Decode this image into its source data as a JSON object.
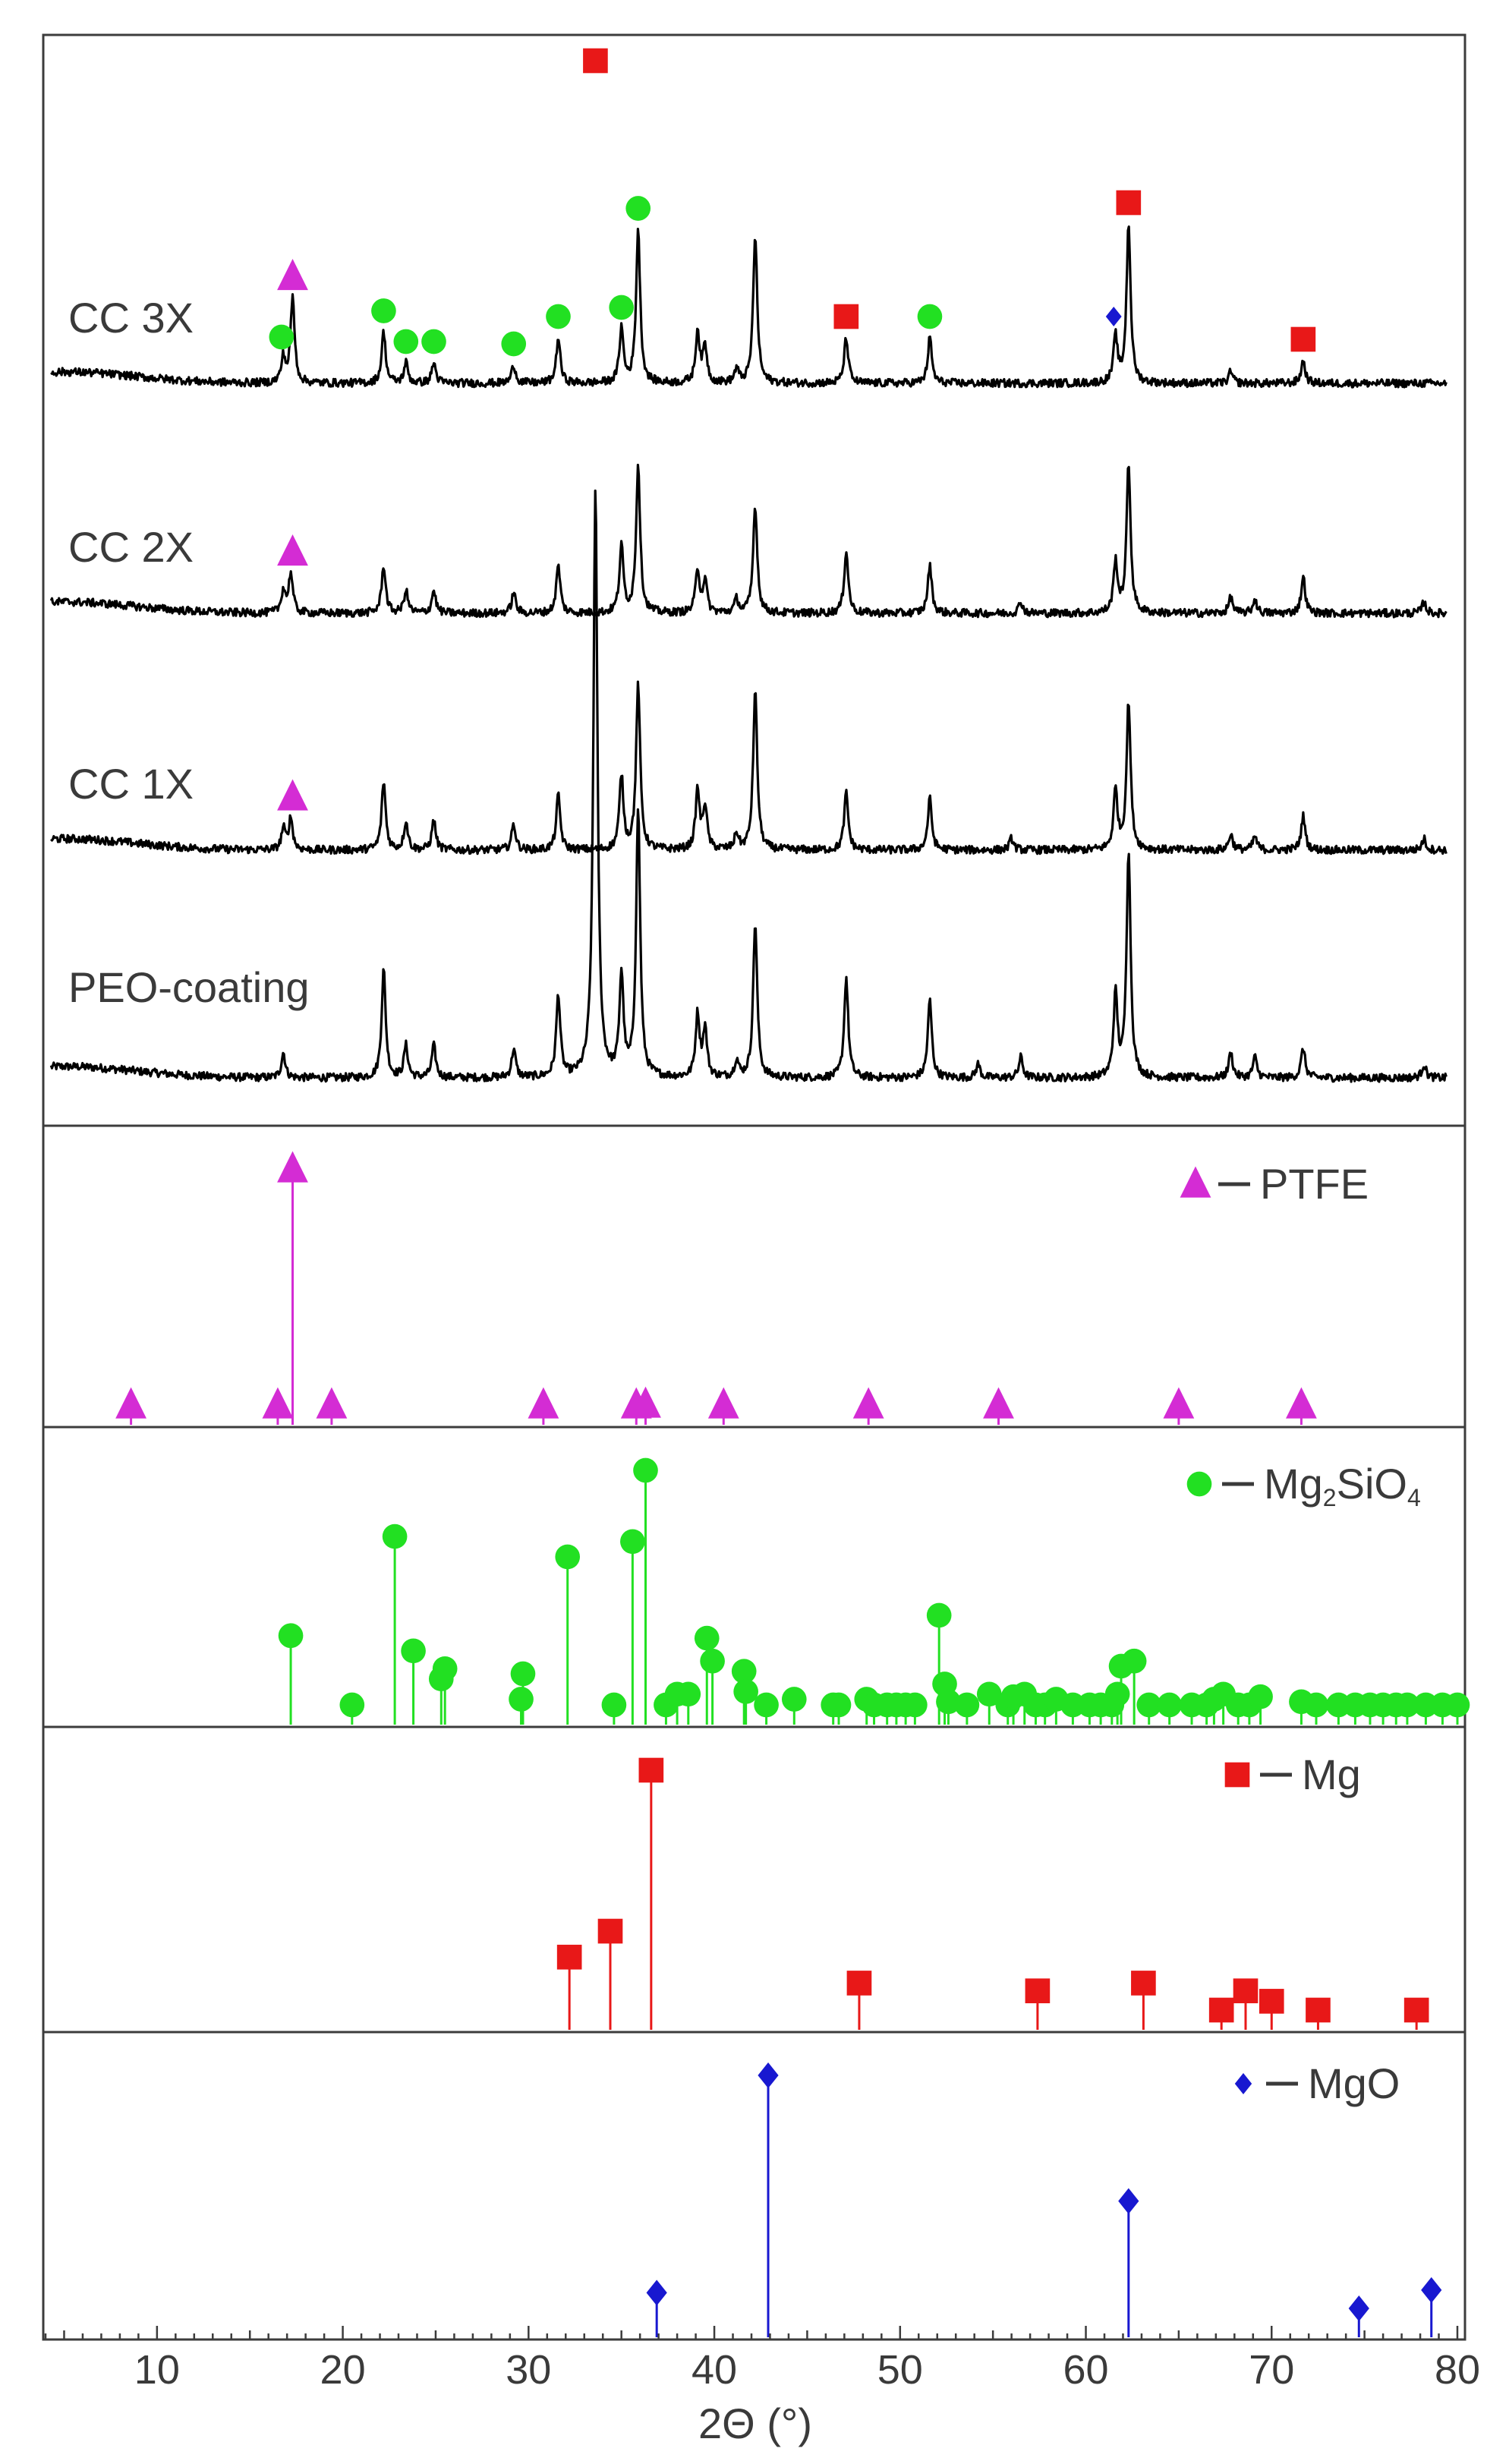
{
  "chart_data": [
    {
      "type": "line",
      "panel": "measured",
      "xlabel": "2Θ (°)",
      "xlim": [
        4,
        80
      ],
      "x_ticks": [
        "10",
        "20",
        "30",
        "40",
        "50",
        "60",
        "70",
        "80"
      ],
      "series": [
        {
          "name": "PEO-coating",
          "peaks": [
            [
              16.8,
              0.22
            ],
            [
              22.2,
              0.95
            ],
            [
              23.4,
              0.28
            ],
            [
              24.9,
              0.28
            ],
            [
              29.2,
              0.25
            ],
            [
              31.6,
              0.72
            ],
            [
              33.6,
              5.2
            ],
            [
              35.0,
              0.88
            ],
            [
              35.9,
              2.35
            ],
            [
              39.1,
              0.55
            ],
            [
              39.5,
              0.42
            ],
            [
              41.2,
              0.15
            ],
            [
              42.2,
              1.36
            ],
            [
              47.1,
              0.88
            ],
            [
              51.6,
              0.68
            ],
            [
              54.2,
              0.12
            ],
            [
              56.5,
              0.18
            ],
            [
              61.6,
              0.72
            ],
            [
              62.3,
              2.0
            ],
            [
              67.8,
              0.22
            ],
            [
              69.1,
              0.18
            ],
            [
              71.7,
              0.26
            ],
            [
              78.2,
              0.12
            ]
          ]
        },
        {
          "name": "CC 1X",
          "peaks": [
            [
              16.8,
              0.18
            ],
            [
              17.2,
              0.28
            ],
            [
              22.2,
              0.6
            ],
            [
              23.4,
              0.25
            ],
            [
              24.9,
              0.26
            ],
            [
              29.2,
              0.23
            ],
            [
              31.6,
              0.48
            ],
            [
              35.0,
              0.65
            ],
            [
              35.9,
              1.45
            ],
            [
              39.1,
              0.52
            ],
            [
              39.5,
              0.38
            ],
            [
              41.2,
              0.14
            ],
            [
              42.2,
              1.4
            ],
            [
              47.1,
              0.5
            ],
            [
              51.6,
              0.45
            ],
            [
              56.0,
              0.1
            ],
            [
              61.6,
              0.52
            ],
            [
              62.3,
              1.3
            ],
            [
              67.8,
              0.14
            ],
            [
              69.1,
              0.12
            ],
            [
              71.7,
              0.3
            ],
            [
              78.2,
              0.1
            ]
          ]
        },
        {
          "name": "CC 2X",
          "peaks": [
            [
              16.8,
              0.2
            ],
            [
              17.2,
              0.35
            ],
            [
              22.2,
              0.42
            ],
            [
              23.4,
              0.2
            ],
            [
              24.9,
              0.2
            ],
            [
              29.2,
              0.18
            ],
            [
              31.6,
              0.42
            ],
            [
              35.0,
              0.58
            ],
            [
              35.9,
              1.3
            ],
            [
              39.1,
              0.38
            ],
            [
              39.5,
              0.28
            ],
            [
              41.2,
              0.12
            ],
            [
              42.2,
              0.95
            ],
            [
              47.1,
              0.55
            ],
            [
              51.6,
              0.42
            ],
            [
              56.5,
              0.1
            ],
            [
              61.6,
              0.45
            ],
            [
              62.3,
              1.3
            ],
            [
              67.8,
              0.14
            ],
            [
              69.1,
              0.12
            ],
            [
              71.7,
              0.32
            ],
            [
              78.2,
              0.1
            ]
          ]
        },
        {
          "name": "CC 3X",
          "peaks": [
            [
              16.8,
              0.22
            ],
            [
              17.3,
              0.75
            ],
            [
              22.2,
              0.45
            ],
            [
              23.4,
              0.18
            ],
            [
              24.9,
              0.18
            ],
            [
              29.2,
              0.16
            ],
            [
              31.6,
              0.4
            ],
            [
              35.0,
              0.48
            ],
            [
              35.9,
              1.35
            ],
            [
              39.1,
              0.45
            ],
            [
              39.5,
              0.32
            ],
            [
              41.2,
              0.12
            ],
            [
              42.2,
              1.3
            ],
            [
              47.1,
              0.4
            ],
            [
              51.6,
              0.4
            ],
            [
              61.6,
              0.4
            ],
            [
              62.3,
              1.4
            ],
            [
              67.8,
              0.1
            ],
            [
              71.7,
              0.2
            ]
          ]
        }
      ],
      "markers": [
        {
          "phase": "PTFE",
          "x": 17.3,
          "trace": "CC 1X"
        },
        {
          "phase": "PTFE",
          "x": 17.3,
          "trace": "CC 2X"
        },
        {
          "phase": "PTFE",
          "x": 17.3,
          "trace": "CC 3X"
        },
        {
          "phase": "Mg2SiO4",
          "x": 16.7,
          "trace": "CC 3X"
        },
        {
          "phase": "Mg2SiO4",
          "x": 22.2,
          "trace": "CC 3X"
        },
        {
          "phase": "Mg2SiO4",
          "x": 23.4,
          "trace": "CC 3X"
        },
        {
          "phase": "Mg2SiO4",
          "x": 24.9,
          "trace": "CC 3X"
        },
        {
          "phase": "Mg2SiO4",
          "x": 29.2,
          "trace": "CC 3X"
        },
        {
          "phase": "Mg2SiO4",
          "x": 31.6,
          "trace": "CC 3X"
        },
        {
          "phase": "Mg2SiO4",
          "x": 35.0,
          "trace": "CC 3X"
        },
        {
          "phase": "Mg2SiO4",
          "x": 35.9,
          "trace": "CC 3X"
        },
        {
          "phase": "Mg2SiO4",
          "x": 51.6,
          "trace": "CC 3X"
        },
        {
          "phase": "Mg",
          "x": 33.6,
          "trace": "CC 3X"
        },
        {
          "phase": "Mg",
          "x": 47.1,
          "trace": "CC 3X"
        },
        {
          "phase": "Mg",
          "x": 62.3,
          "trace": "CC 3X"
        },
        {
          "phase": "Mg",
          "x": 71.7,
          "trace": "CC 3X"
        },
        {
          "phase": "MgO",
          "x": 61.5,
          "trace": "CC 3X"
        }
      ]
    },
    {
      "type": "stem",
      "panel": "PTFE reference",
      "legend": "PTFE",
      "color": "#d42cd4",
      "marker": "triangle",
      "points": [
        [
          8.6,
          0.02
        ],
        [
          16.5,
          0.02
        ],
        [
          17.3,
          1.0
        ],
        [
          19.4,
          0.02
        ],
        [
          30.8,
          0.03
        ],
        [
          35.8,
          0.03
        ],
        [
          36.3,
          0.08
        ],
        [
          40.5,
          0.06
        ],
        [
          48.3,
          0.02
        ],
        [
          55.3,
          0.02
        ],
        [
          65.0,
          0.02
        ],
        [
          71.6,
          0.02
        ]
      ]
    },
    {
      "type": "stem",
      "panel": "Mg2SiO4 reference",
      "legend_text": "Mg",
      "legend_sub1": "2",
      "legend_mid": "SiO",
      "legend_sub2": "4",
      "color": "#22e022",
      "marker": "circle",
      "points": [
        [
          17.2,
          0.35
        ],
        [
          20.5,
          0.06
        ],
        [
          22.8,
          0.74
        ],
        [
          23.8,
          0.29
        ],
        [
          25.3,
          0.18
        ],
        [
          25.5,
          0.22
        ],
        [
          29.6,
          0.1
        ],
        [
          29.7,
          0.2
        ],
        [
          32.1,
          0.66
        ],
        [
          34.6,
          0.06
        ],
        [
          35.6,
          0.72
        ],
        [
          36.3,
          1.0
        ],
        [
          37.4,
          0.05
        ],
        [
          38.0,
          0.12
        ],
        [
          38.6,
          0.12
        ],
        [
          39.6,
          0.34
        ],
        [
          39.9,
          0.25
        ],
        [
          41.6,
          0.21
        ],
        [
          41.7,
          0.13
        ],
        [
          42.8,
          0.04
        ],
        [
          44.3,
          0.1
        ],
        [
          46.4,
          0.06
        ],
        [
          46.7,
          0.07
        ],
        [
          48.2,
          0.1
        ],
        [
          48.6,
          0.06
        ],
        [
          49.3,
          0.05
        ],
        [
          49.8,
          0.05
        ],
        [
          50.3,
          0.05
        ],
        [
          50.8,
          0.05
        ],
        [
          52.1,
          0.43
        ],
        [
          52.4,
          0.16
        ],
        [
          52.6,
          0.09
        ],
        [
          53.6,
          0.05
        ],
        [
          54.8,
          0.12
        ],
        [
          55.8,
          0.06
        ],
        [
          56.1,
          0.11
        ],
        [
          56.7,
          0.12
        ],
        [
          57.3,
          0.05
        ],
        [
          57.8,
          0.05
        ],
        [
          58.4,
          0.1
        ],
        [
          59.3,
          0.05
        ],
        [
          60.2,
          0.05
        ],
        [
          60.8,
          0.07
        ],
        [
          61.4,
          0.07
        ],
        [
          61.7,
          0.12
        ],
        [
          61.9,
          0.23
        ],
        [
          62.6,
          0.25
        ],
        [
          63.4,
          0.06
        ],
        [
          64.5,
          0.06
        ],
        [
          65.7,
          0.05
        ],
        [
          66.5,
          0.05
        ],
        [
          66.9,
          0.1
        ],
        [
          67.4,
          0.12
        ],
        [
          68.2,
          0.05
        ],
        [
          68.8,
          0.05
        ],
        [
          69.4,
          0.11
        ],
        [
          71.6,
          0.09
        ],
        [
          72.4,
          0.05
        ],
        [
          73.6,
          0.05
        ],
        [
          74.5,
          0.05
        ],
        [
          75.3,
          0.05
        ],
        [
          76.0,
          0.05
        ],
        [
          76.7,
          0.05
        ],
        [
          77.3,
          0.05
        ],
        [
          78.3,
          0.05
        ],
        [
          79.2,
          0.04
        ],
        [
          80.0,
          0.04
        ]
      ]
    },
    {
      "type": "stem",
      "panel": "Mg reference",
      "legend": "Mg",
      "color": "#e81818",
      "marker": "square",
      "points": [
        [
          32.2,
          0.28
        ],
        [
          34.4,
          0.38
        ],
        [
          36.6,
          1.0
        ],
        [
          47.8,
          0.18
        ],
        [
          57.4,
          0.15
        ],
        [
          63.1,
          0.18
        ],
        [
          67.3,
          0.06
        ],
        [
          68.6,
          0.15
        ],
        [
          70.0,
          0.11
        ],
        [
          72.5,
          0.06
        ],
        [
          77.8,
          0.06
        ]
      ]
    },
    {
      "type": "stem",
      "panel": "MgO reference",
      "legend": "MgO",
      "color": "#1818d0",
      "marker": "diamond",
      "points": [
        [
          36.9,
          0.17
        ],
        [
          42.9,
          1.0
        ],
        [
          62.3,
          0.52
        ],
        [
          74.7,
          0.11
        ],
        [
          78.6,
          0.18
        ]
      ]
    }
  ]
}
